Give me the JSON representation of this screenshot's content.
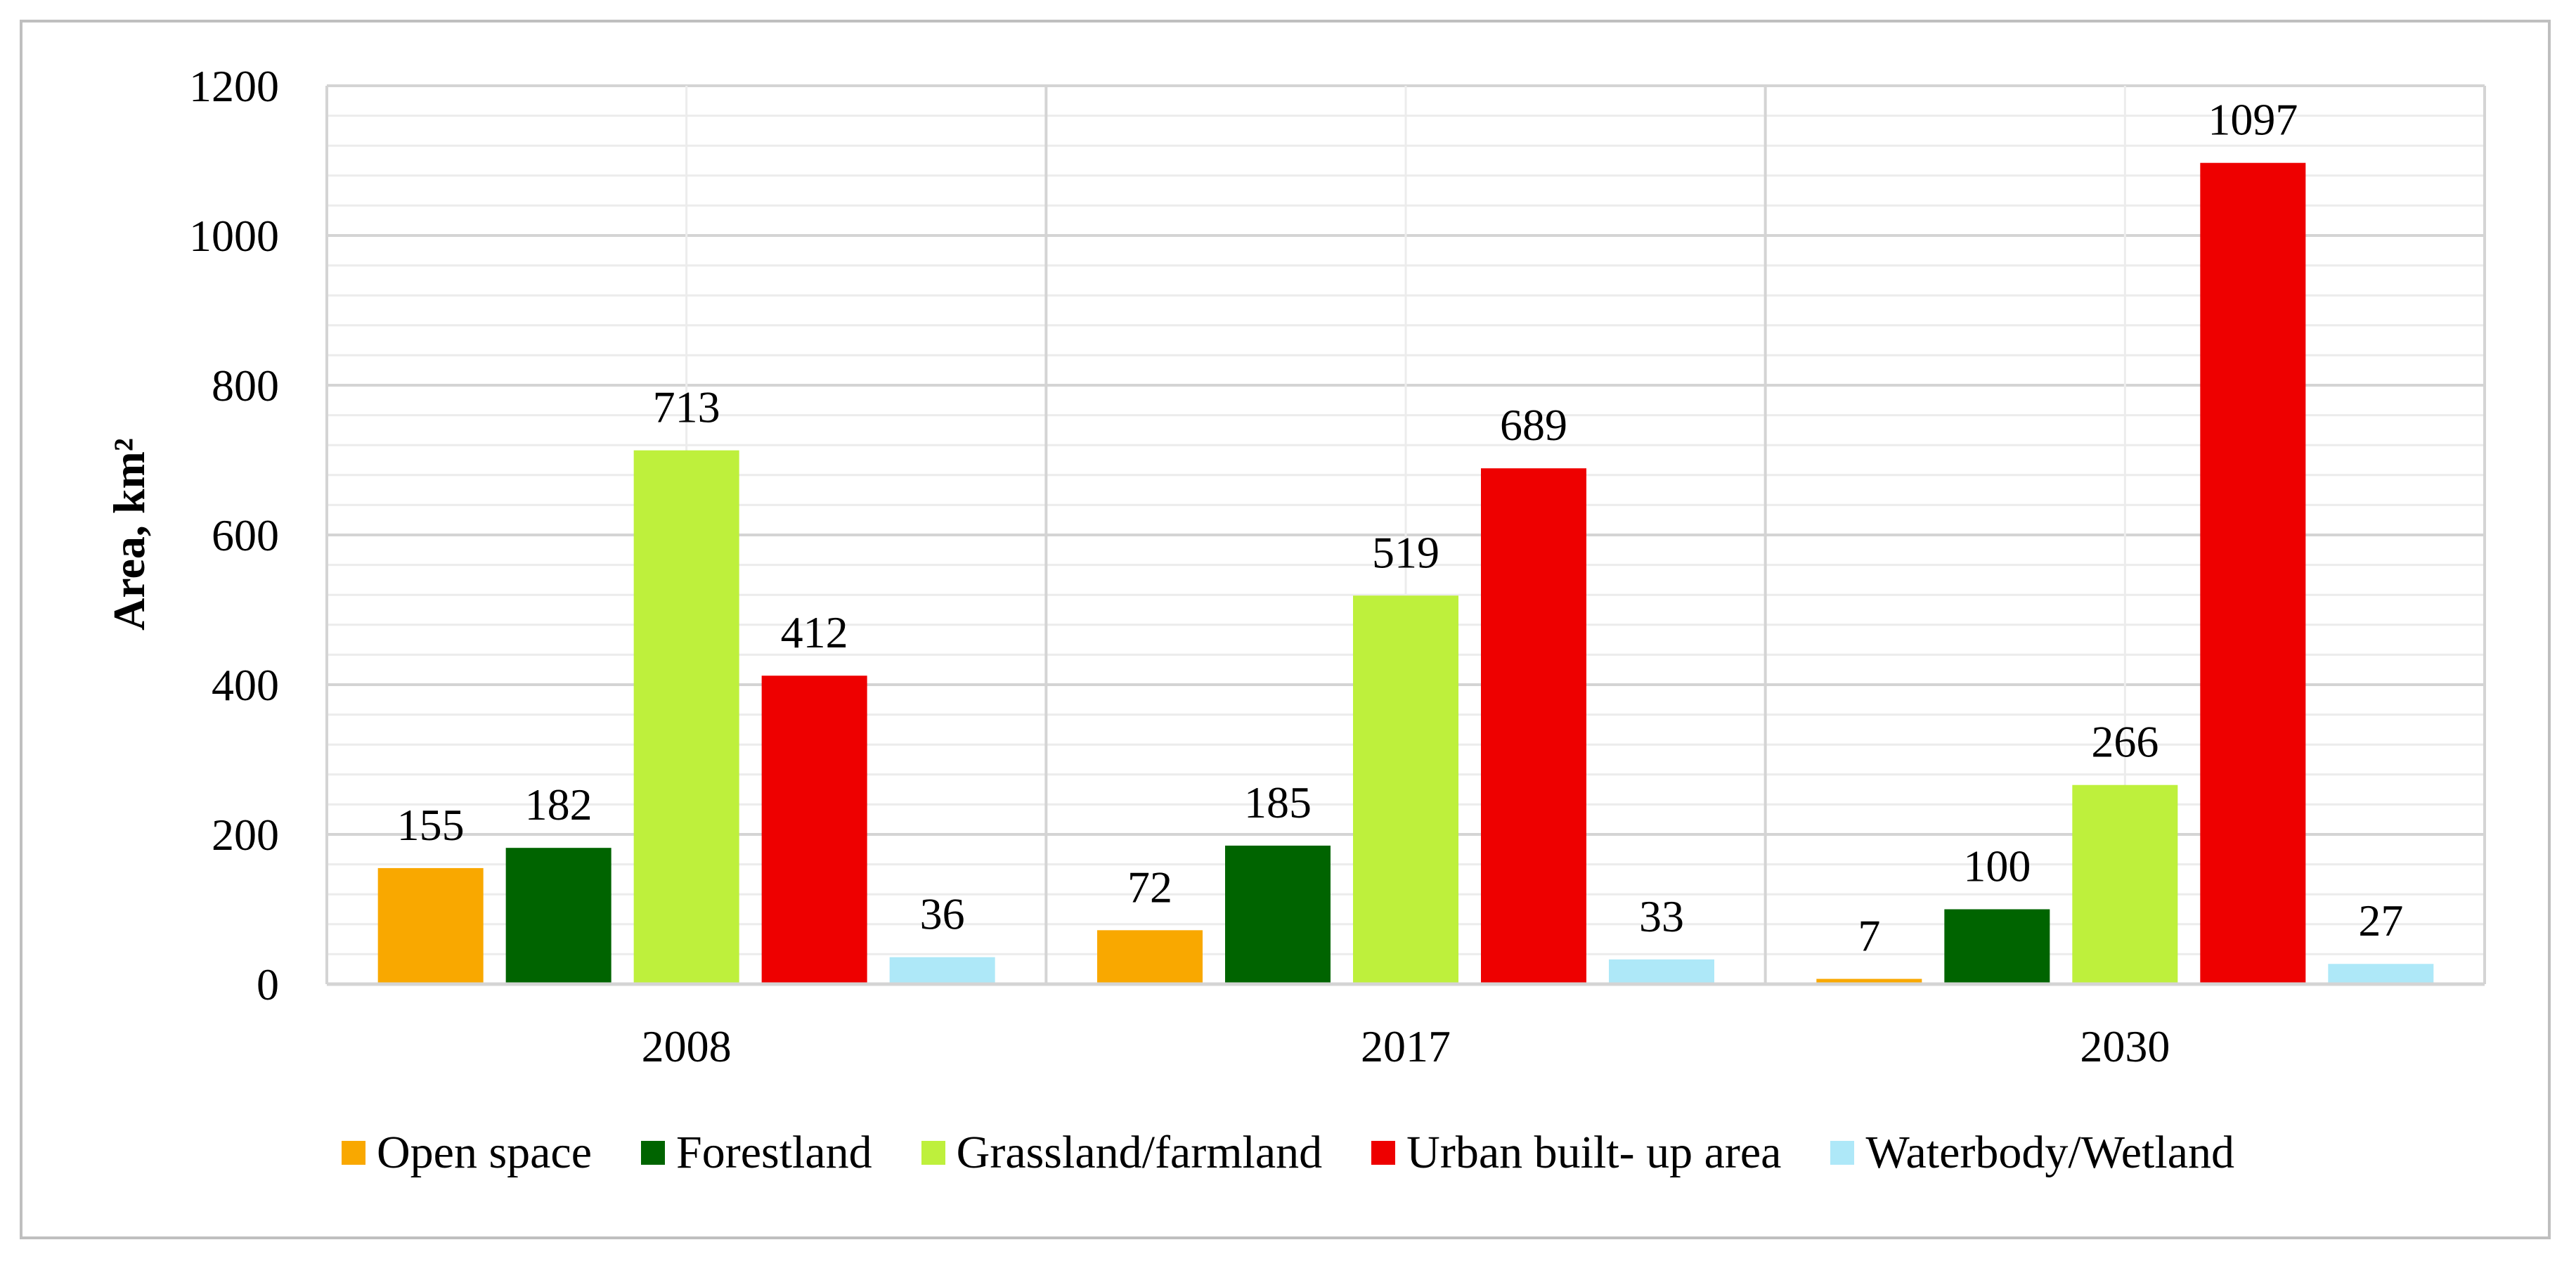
{
  "chart_data": {
    "type": "bar",
    "title": "",
    "xlabel": "",
    "ylabel": "Area, km²",
    "ylim": [
      0,
      1200
    ],
    "yticks": [
      0,
      200,
      400,
      600,
      800,
      1000,
      1200
    ],
    "ytick_labels": [
      "0",
      "200",
      "400",
      "600",
      "800",
      "1000",
      "1200"
    ],
    "minor_grid_step": 40,
    "categories": [
      "2008",
      "2017",
      "2030"
    ],
    "series": [
      {
        "name": "Open space",
        "color": "#f9a800",
        "values": [
          155,
          72,
          7
        ],
        "labels": [
          "155",
          "72",
          "7"
        ]
      },
      {
        "name": "Forestland",
        "color": "#006400",
        "values": [
          182,
          185,
          100
        ],
        "labels": [
          "182",
          "185",
          "100"
        ]
      },
      {
        "name": "Grassland/farmland",
        "color": "#bef03c",
        "values": [
          713,
          519,
          266
        ],
        "labels": [
          "713",
          "519",
          "266"
        ]
      },
      {
        "name": "Urban built- up area",
        "color": "#ee0000",
        "values": [
          412,
          689,
          1097
        ],
        "labels": [
          "412",
          "689",
          "1097"
        ]
      },
      {
        "name": "Waterbody/Wetland",
        "color": "#aee8f8",
        "values": [
          36,
          33,
          27
        ],
        "labels": [
          "36",
          "33",
          "27"
        ]
      }
    ],
    "legend_position": "bottom",
    "grid": true
  }
}
